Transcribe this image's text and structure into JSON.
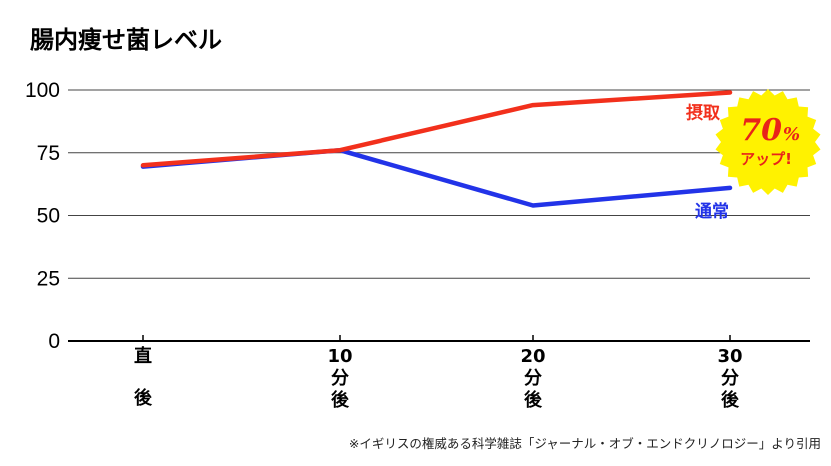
{
  "colors": {
    "intake": "#f2301c",
    "normal": "#2233e8",
    "grid": "#444444",
    "badge_fill": "#fff200",
    "badge_text": "#e8231a"
  },
  "chart_data": {
    "type": "line",
    "title": "腸内痩せ菌レベル",
    "categories": [
      [
        "直",
        "後"
      ],
      [
        "10",
        "分",
        "後"
      ],
      [
        "20",
        "分",
        "後"
      ],
      [
        "30",
        "分",
        "後"
      ]
    ],
    "ylim": [
      0,
      100
    ],
    "yticks": [
      "100",
      "75",
      "50",
      "25",
      "0"
    ],
    "grid": true,
    "series": [
      {
        "name": "摂取",
        "values": [
          70,
          76,
          94,
          99
        ]
      },
      {
        "name": "通常",
        "values": [
          69.5,
          76,
          54,
          61
        ]
      }
    ],
    "annotation": {
      "value": "70",
      "unit": "%",
      "text": "アップ!"
    }
  },
  "footnote": "※イギリスの権威ある科学雑誌「ジャーナル・オブ・エンドクリノロジー」より引用"
}
